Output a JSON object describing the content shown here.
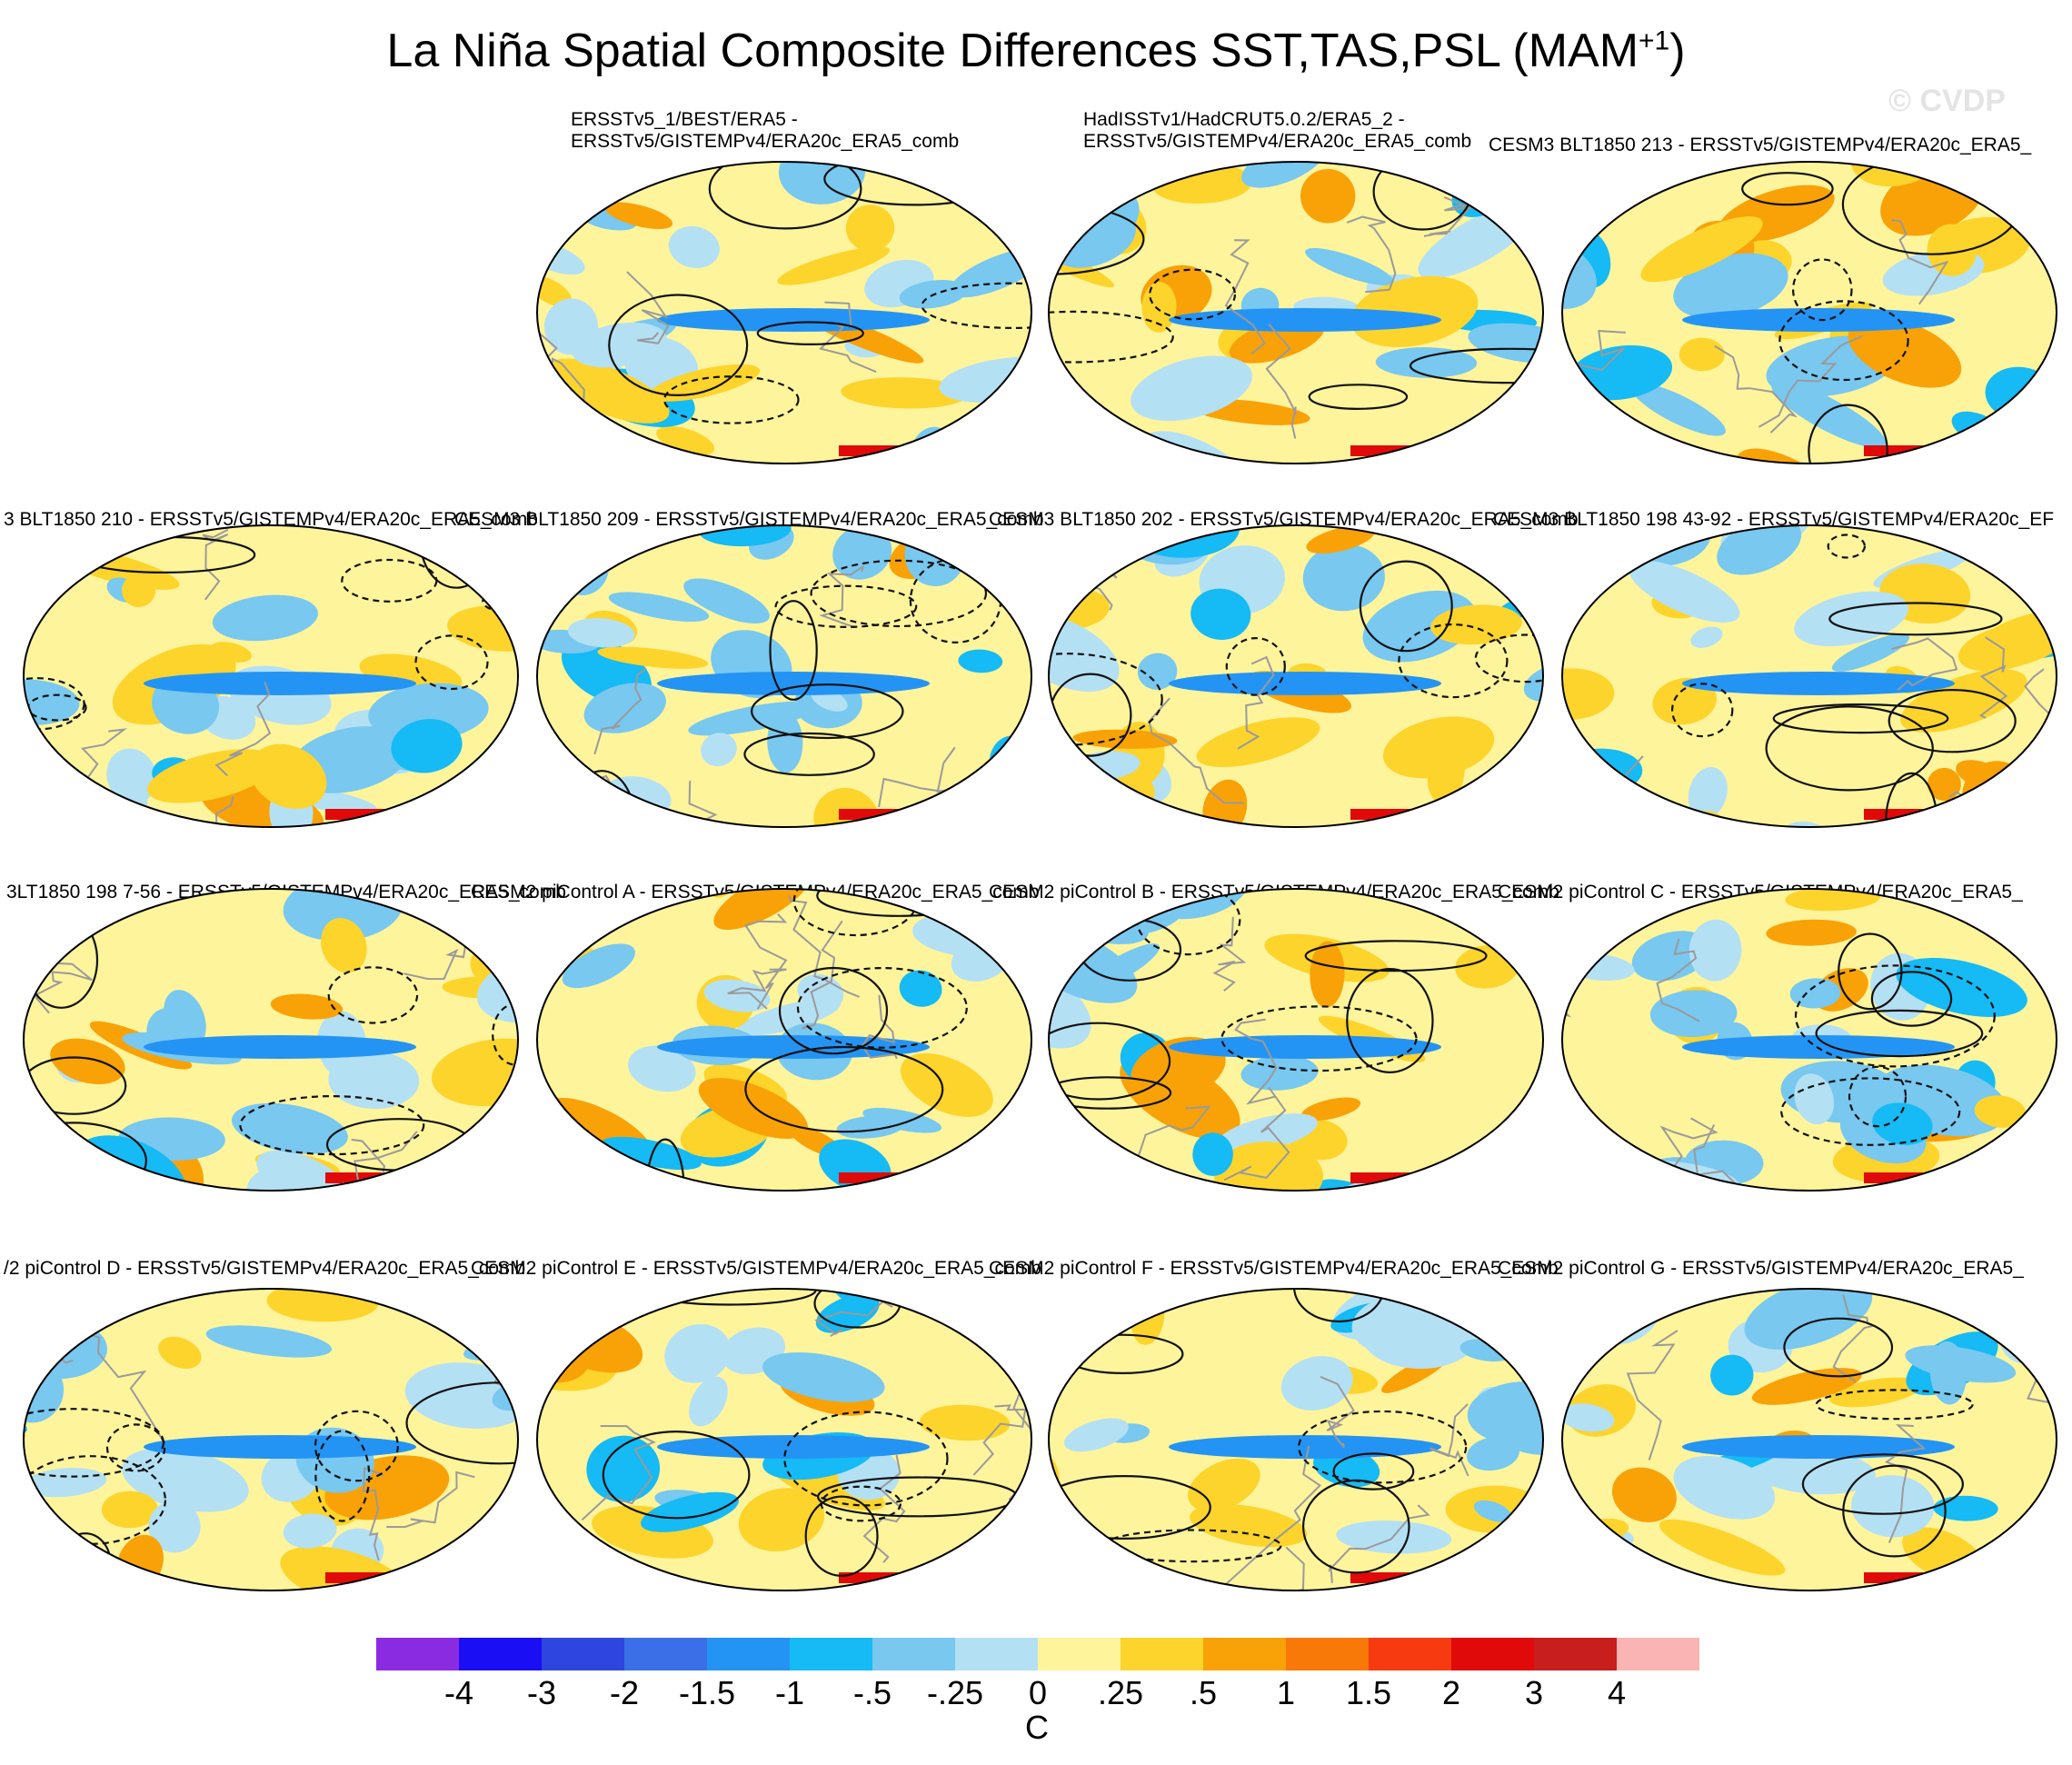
{
  "title": {
    "text": "La Niña Spatial Composite Differences SST,TAS,PSL (MAM",
    "sup": "+1",
    "close": ")"
  },
  "copyright": "© CVDP",
  "panels": [
    {
      "id": "obs-1",
      "line1": "ERSSTv5_1/BEST/ERA5 -",
      "line2": "ERSSTv5/GISTEMPv4/ERA20c_ERA5_comb"
    },
    {
      "id": "obs-2",
      "line1": "HadISSTv1/HadCRUT5.0.2/ERA5_2 -",
      "line2": "ERSSTv5/GISTEMPv4/ERA20c_ERA5_comb"
    },
    {
      "id": "blt-213",
      "line1": "CESM3 BLT1850 213 - ERSSTv5/GISTEMPv4/ERA20c_ERA5_"
    },
    {
      "id": "blt-210",
      "line1": "3 BLT1850 210 - ERSSTv5/GISTEMPv4/ERA20c_ERA5_comb"
    },
    {
      "id": "blt-209",
      "line1": "CESM3 BLT1850 209 - ERSSTv5/GISTEMPv4/ERA20c_ERA5_comb"
    },
    {
      "id": "blt-202",
      "line1": "CESM3 BLT1850 202 - ERSSTv5/GISTEMPv4/ERA20c_ERA5_comb"
    },
    {
      "id": "blt-198-43",
      "line1": "CESM3 BLT1850 198 43-92 - ERSSTv5/GISTEMPv4/ERA20c_EF"
    },
    {
      "id": "blt-198-7",
      "line1": "3LT1850 198 7-56 - ERSSTv5/GISTEMPv4/ERA20c_ERA5_comb"
    },
    {
      "id": "pic-a",
      "line1": "CESM2 piControl A - ERSSTv5/GISTEMPv4/ERA20c_ERA5_comb"
    },
    {
      "id": "pic-b",
      "line1": "CESM2 piControl B - ERSSTv5/GISTEMPv4/ERA20c_ERA5_comb"
    },
    {
      "id": "pic-c",
      "line1": "CESM2 piControl C - ERSSTv5/GISTEMPv4/ERA20c_ERA5_"
    },
    {
      "id": "pic-d",
      "line1": "/2 piControl D - ERSSTv5/GISTEMPv4/ERA20c_ERA5_comb"
    },
    {
      "id": "pic-e",
      "line1": "CESM2 piControl E - ERSSTv5/GISTEMPv4/ERA20c_ERA5_comb"
    },
    {
      "id": "pic-f",
      "line1": "CESM2 piControl F - ERSSTv5/GISTEMPv4/ERA20c_ERA5_comb"
    },
    {
      "id": "pic-g",
      "line1": "CESM2 piControl G - ERSSTv5/GISTEMPv4/ERA20c_ERA5_"
    }
  ],
  "colorbar": {
    "colors": [
      "#8a2be2",
      "#1a0ef5",
      "#2f45e0",
      "#3a6fe8",
      "#2494f4",
      "#16baf4",
      "#78c8f0",
      "#b4e0f4",
      "#fef49c",
      "#fcd42c",
      "#f8a208",
      "#f87808",
      "#f83a10",
      "#e00a0a",
      "#c81e1e",
      "#fab4b4"
    ],
    "labels": [
      "-4",
      "-3",
      "-2",
      "-1.5",
      "-1",
      "-.5",
      "-.25",
      "0",
      ".25",
      ".5",
      "1",
      "1.5",
      "2",
      "3",
      "4"
    ],
    "units": "C"
  }
}
